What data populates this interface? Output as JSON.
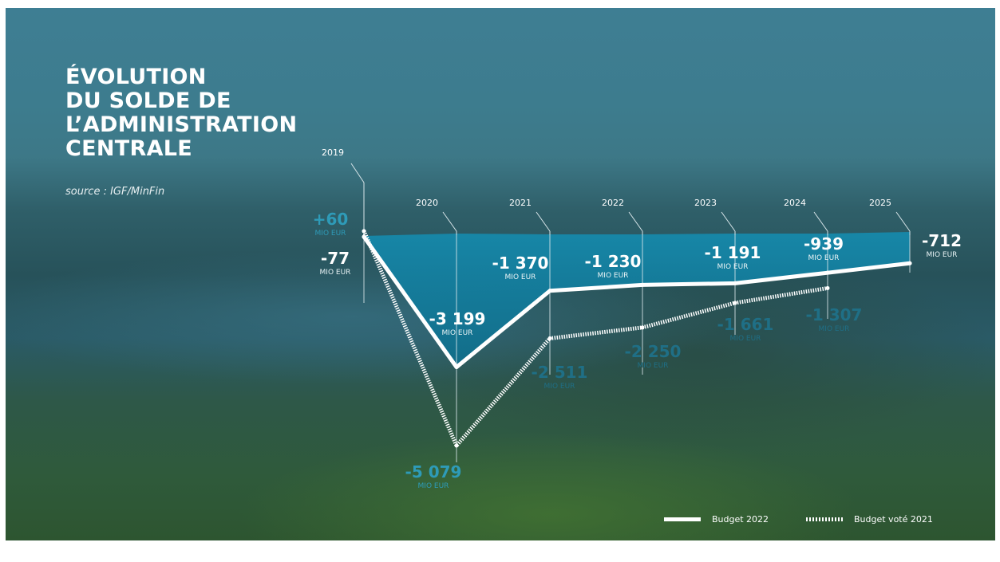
{
  "title": {
    "lines": [
      "ÉVOLUTION",
      "DU SOLDE DE",
      "L’ADMINISTRATION",
      "CENTRALE"
    ]
  },
  "source": "source : IGF/MinFin",
  "legend": {
    "budget_2022": "Budget 2022",
    "budget_vote_2021": "Budget voté 2021"
  },
  "colors": {
    "budget_2022": "#ffffff",
    "budget_vote_2021": "#ffffff",
    "budget_vote_2021_label": "#2e9bb8",
    "budget_vote_2021_label_dark": "#1f6f86",
    "area_fill": "#1689ab",
    "background": "#3d7887"
  },
  "chart_data": {
    "type": "line",
    "x": [
      "2019",
      "2020",
      "2021",
      "2022",
      "2023",
      "2024",
      "2025"
    ],
    "unit": "MIO EUR",
    "ylim": [
      -5400,
      300
    ],
    "grid": false,
    "legend_position": "bottom-right",
    "series": [
      {
        "name": "Budget 2022",
        "style": "solid",
        "values": [
          -77,
          -3199,
          -1370,
          -1230,
          -1191,
          -939,
          -712
        ],
        "labels": [
          "-77",
          "-3 199",
          "-1 370",
          "-1 230",
          "-1 191",
          "-939",
          "-712"
        ]
      },
      {
        "name": "Budget voté 2021",
        "style": "dotted",
        "values": [
          60,
          -5079,
          -2511,
          -2250,
          -1661,
          -1307,
          null
        ],
        "labels": [
          "+60",
          "-5 079",
          "-2 511",
          "-2 250",
          "-1 661",
          "-1 307",
          ""
        ]
      }
    ]
  }
}
